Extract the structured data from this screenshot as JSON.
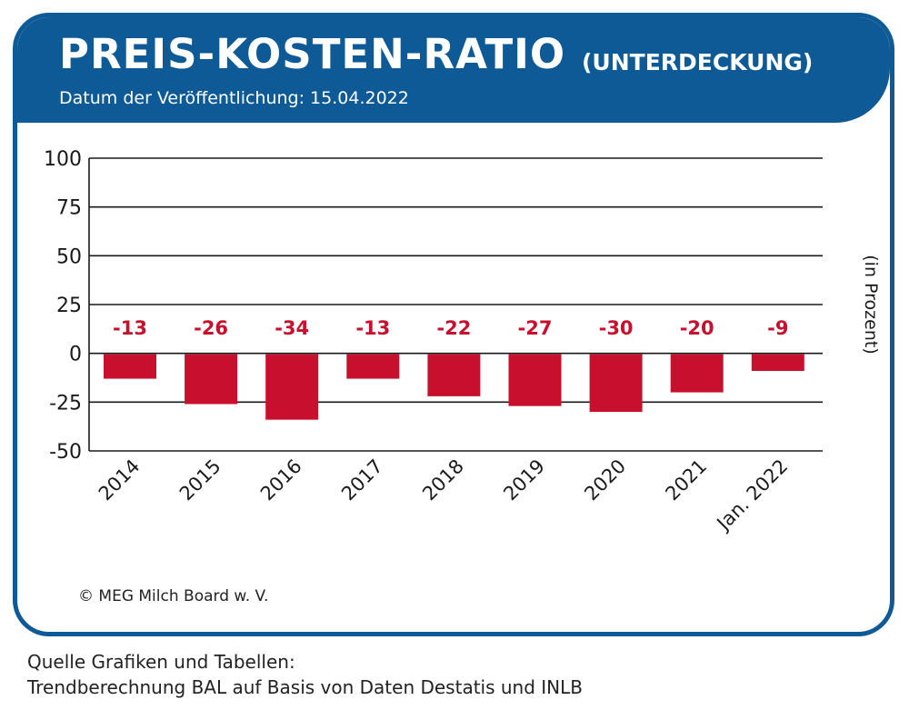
{
  "header": {
    "title": "PREIS-KOSTEN-RATIO",
    "title_suffix": "(UNTERDECKUNG)",
    "publication": "Datum der Veröffentlichung: 15.04.2022"
  },
  "footer": {
    "copyright": "© MEG Milch Board w. V.",
    "source_line1": "Quelle Grafiken und Tabellen:",
    "source_line2": "Trendberechnung BAL auf Basis von Daten Destatis und INLB"
  },
  "colors": {
    "brand_blue": "#0d5a96",
    "bar_red": "#c8102e",
    "label_red": "#c8102e"
  },
  "chart_data": {
    "type": "bar",
    "title": "PREIS-KOSTEN-RATIO (UNTERDECKUNG)",
    "categories": [
      "2014",
      "2015",
      "2016",
      "2017",
      "2018",
      "2019",
      "2020",
      "2021",
      "Jan. 2022"
    ],
    "values": [
      -13,
      -26,
      -34,
      -13,
      -22,
      -27,
      -30,
      -20,
      -9
    ],
    "data_labels": [
      "-13",
      "-26",
      "-34",
      "-13",
      "-22",
      "-27",
      "-30",
      "-20",
      "-9"
    ],
    "ylabel": "(in Prozent)",
    "xlabel": "",
    "ylim": [
      -50,
      100
    ],
    "yticks": [
      100,
      75,
      50,
      25,
      0,
      -25,
      -50
    ],
    "ytick_labels": [
      "100",
      "75",
      "50",
      "25",
      "0",
      "-25",
      "-50"
    ],
    "grid": true,
    "legend": "none"
  }
}
